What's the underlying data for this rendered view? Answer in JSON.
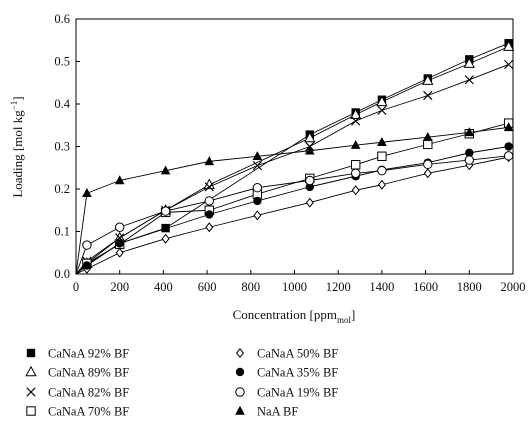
{
  "chart_data": {
    "type": "scatter",
    "title": "",
    "ylabel_main": "Loading [mol kg",
    "ylabel_sup": "−1",
    "ylabel_tail": "]",
    "xlabel_main": "Concentration [ppm",
    "xlabel_sub": "mol",
    "xlabel_tail": "]",
    "xlim": [
      0,
      2000
    ],
    "ylim": [
      0,
      0.6
    ],
    "x_ticks": [
      "0",
      "200",
      "400",
      "600",
      "800",
      "1000",
      "1200",
      "1400",
      "1600",
      "1800",
      "2000"
    ],
    "y_ticks": [
      "0.0",
      "0.1",
      "0.2",
      "0.3",
      "0.4",
      "0.5",
      "0.6"
    ],
    "grid": false,
    "legend_position": "bottom",
    "series": [
      {
        "name": "CaNaA 92% BF",
        "marker": "square-filled",
        "x": [
          50,
          200,
          410,
          1070,
          1280,
          1400,
          1610,
          1800,
          1980
        ],
        "y": [
          0.022,
          0.072,
          0.108,
          0.328,
          0.38,
          0.41,
          0.46,
          0.505,
          0.543
        ]
      },
      {
        "name": "CaNaA 89% BF",
        "marker": "triangle-open",
        "x": [
          50,
          200,
          410,
          610,
          1070,
          1280,
          1400,
          1610,
          1800,
          1980
        ],
        "y": [
          0.025,
          0.085,
          0.15,
          0.21,
          0.32,
          0.375,
          0.405,
          0.455,
          0.495,
          0.535
        ]
      },
      {
        "name": "CaNaA 82% BF",
        "marker": "x",
        "x": [
          50,
          200,
          410,
          610,
          830,
          1070,
          1280,
          1400,
          1610,
          1800,
          1980
        ],
        "y": [
          0.03,
          0.085,
          0.15,
          0.205,
          0.255,
          0.3,
          0.36,
          0.385,
          0.42,
          0.457,
          0.493
        ]
      },
      {
        "name": "CaNaA 70% BF",
        "marker": "square-open",
        "x": [
          50,
          200,
          410,
          610,
          830,
          1070,
          1280,
          1400,
          1610,
          1800,
          1980
        ],
        "y": [
          0.025,
          0.07,
          0.145,
          0.15,
          0.188,
          0.225,
          0.257,
          0.277,
          0.305,
          0.33,
          0.355
        ]
      },
      {
        "name": "CaNaA 50% BF",
        "marker": "diamond-open",
        "x": [
          50,
          200,
          410,
          610,
          830,
          1070,
          1280,
          1400,
          1610,
          1800,
          1980
        ],
        "y": [
          0.012,
          0.05,
          0.083,
          0.11,
          0.138,
          0.168,
          0.197,
          0.21,
          0.237,
          0.256,
          0.275
        ]
      },
      {
        "name": "CaNaA 35% BF",
        "marker": "circle-filled",
        "x": [
          50,
          200,
          610,
          830,
          1070,
          1280,
          1400,
          1610,
          1800,
          1980
        ],
        "y": [
          0.02,
          0.072,
          0.14,
          0.172,
          0.205,
          0.23,
          0.245,
          0.262,
          0.285,
          0.3
        ]
      },
      {
        "name": "CaNaA 19% BF",
        "marker": "circle-open",
        "x": [
          50,
          200,
          410,
          610,
          830,
          1070,
          1280,
          1400,
          1610,
          1800,
          1980
        ],
        "y": [
          0.068,
          0.11,
          0.148,
          0.172,
          0.203,
          0.22,
          0.237,
          0.243,
          0.258,
          0.268,
          0.278
        ]
      },
      {
        "name": "NaA BF",
        "marker": "triangle-filled",
        "x": [
          50,
          200,
          410,
          610,
          830,
          1070,
          1280,
          1400,
          1610,
          1800,
          1980
        ],
        "y": [
          0.19,
          0.22,
          0.243,
          0.265,
          0.277,
          0.29,
          0.303,
          0.31,
          0.322,
          0.333,
          0.345
        ]
      }
    ]
  }
}
